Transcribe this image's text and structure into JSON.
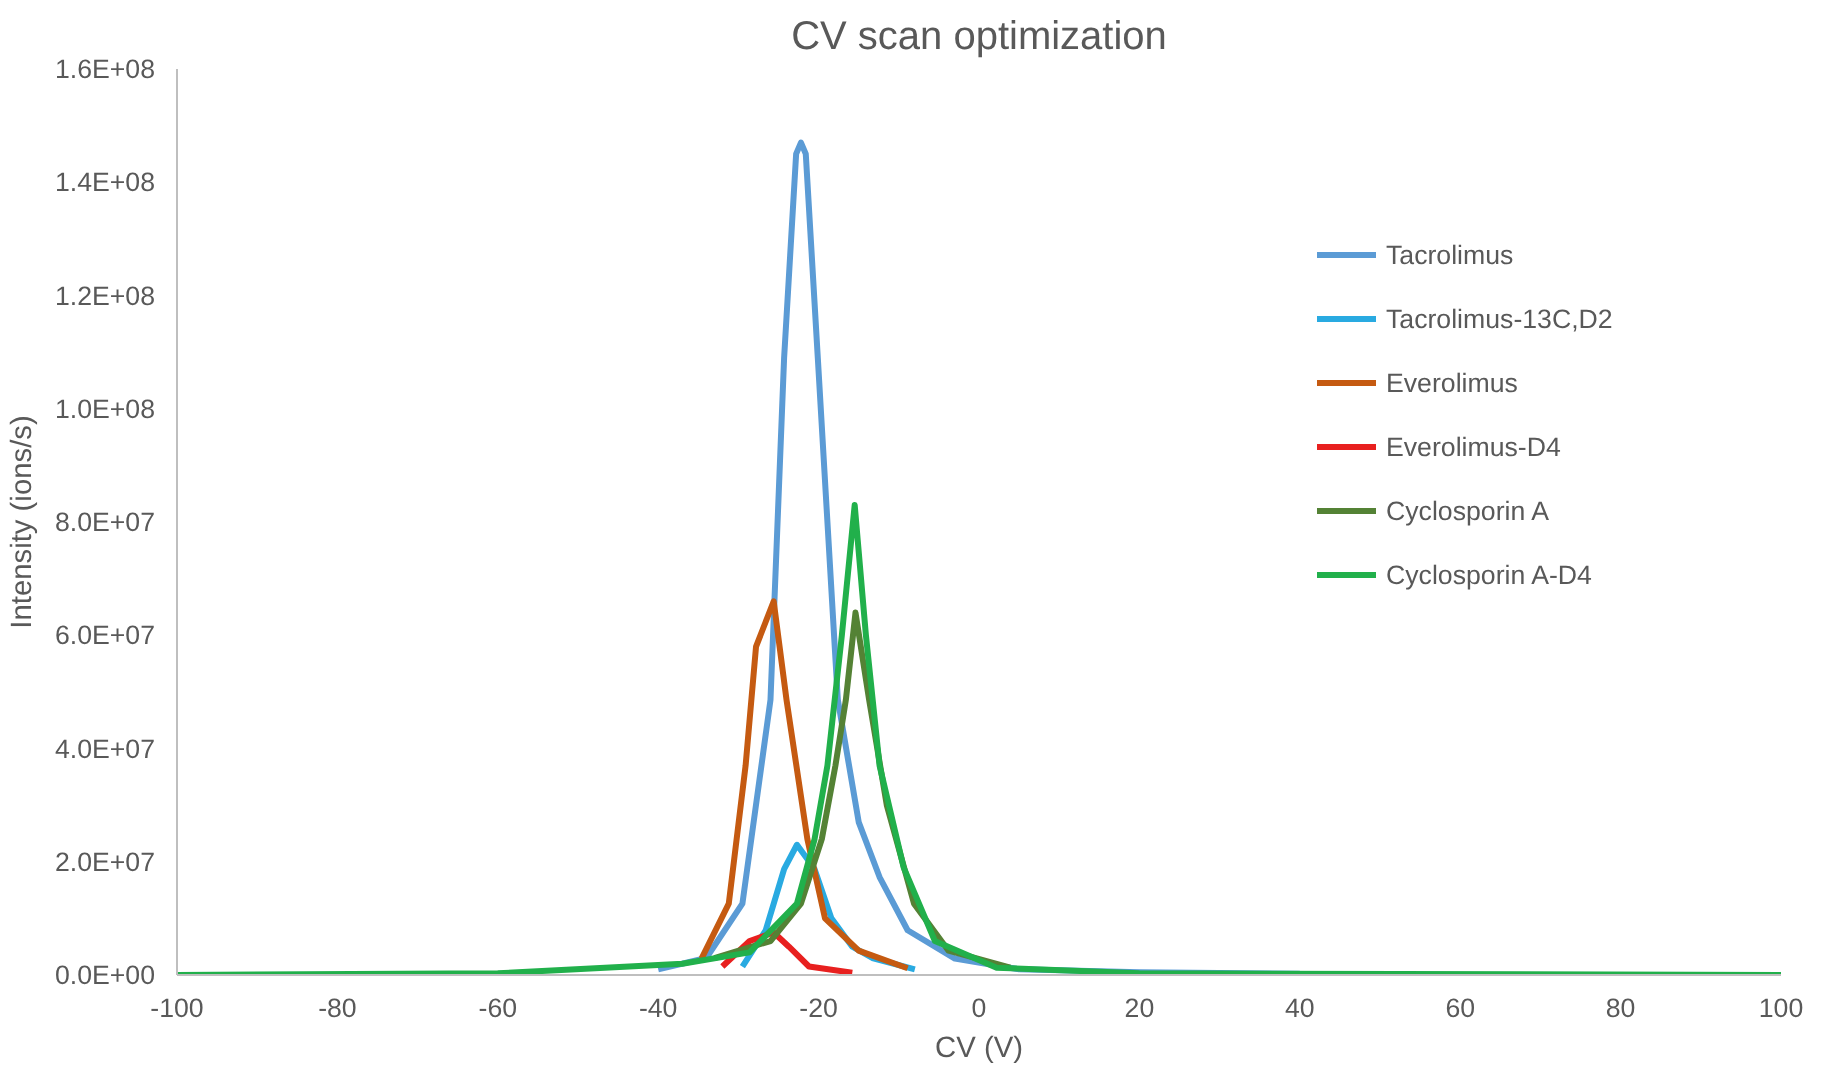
{
  "chart_data": {
    "type": "line",
    "title": "CV scan optimization",
    "xlabel": "CV (V)",
    "ylabel": "Intensity (ions/s)",
    "xlim": [
      -100,
      100
    ],
    "xticks": [
      -100,
      -80,
      -60,
      -40,
      -20,
      0,
      20,
      40,
      60,
      80,
      100
    ],
    "ylim": [
      0,
      160000000
    ],
    "yticks": [
      {
        "value": 0,
        "label": "0.0E+00"
      },
      {
        "value": 20000000,
        "label": "2.0E+07"
      },
      {
        "value": 40000000,
        "label": "4.0E+07"
      },
      {
        "value": 60000000,
        "label": "6.0E+07"
      },
      {
        "value": 80000000,
        "label": "8.0E+07"
      },
      {
        "value": 100000000,
        "label": "1.0E+08"
      },
      {
        "value": 120000000,
        "label": "1.2E+08"
      },
      {
        "value": 140000000,
        "label": "1.4E+08"
      },
      {
        "value": 160000000,
        "label": "1.6E+08"
      }
    ],
    "grid": false,
    "legend": "top right",
    "marker": "none",
    "line_style": "solid",
    "series": [
      {
        "name": "Tacrolimus",
        "color": "#5b9bd5",
        "x": [
          -40,
          -34,
          -29.5,
          -26,
          -24.3,
          -22.8,
          -22.2,
          -21.6,
          -20.1,
          -17.6,
          -15,
          -12.4,
          -8.9,
          -3,
          5,
          20,
          40
        ],
        "values": [
          1000000,
          3000000,
          12600000,
          48600000,
          109000000,
          145000000,
          147000000,
          145000000,
          109000000,
          48600000,
          27000000,
          17300000,
          7900000,
          2900000,
          1000000,
          500000,
          200000
        ]
      },
      {
        "name": "Tacrolimus-13C,D2",
        "color": "#29aae1",
        "x": [
          -29.5,
          -26.6,
          -24.3,
          -22.7,
          -20.5,
          -18.4,
          -15.8,
          -13.3,
          -8
        ],
        "values": [
          1500000,
          7900000,
          18700000,
          23000000,
          18700000,
          10000000,
          5000000,
          3000000,
          1000000
        ]
      },
      {
        "name": "Everolimus",
        "color": "#c55a11",
        "x": [
          -34.6,
          -31.2,
          -29.1,
          -27.8,
          -25.6,
          -24,
          -21.4,
          -19.2,
          -15,
          -8.9
        ],
        "values": [
          2900000,
          12600000,
          37000000,
          58000000,
          66000000,
          48600000,
          24000000,
          10000000,
          4300000,
          1200000
        ]
      },
      {
        "name": "Everolimus-D4",
        "color": "#e8201f",
        "x": [
          -32,
          -28.6,
          -25.6,
          -23.7,
          -21.2,
          -15.8
        ],
        "values": [
          1500000,
          6000000,
          7500000,
          5000000,
          1500000,
          400000
        ]
      },
      {
        "name": "Cyclosporin A",
        "color": "#548235",
        "x": [
          -33,
          -26,
          -22.2,
          -19.6,
          -17.9,
          -16.6,
          -15.4,
          -13.7,
          -11.5,
          -8.1,
          -3.8,
          3.9
        ],
        "values": [
          3000000,
          6000000,
          12600000,
          24000000,
          37000000,
          48600000,
          64000000,
          48600000,
          30000000,
          12600000,
          4300000,
          1300000
        ]
      },
      {
        "name": "Cyclosporin A-D4",
        "color": "#21b04b",
        "x": [
          -100,
          -60,
          -37,
          -28.6,
          -22.7,
          -20.5,
          -18.9,
          -17.1,
          -15.5,
          -14.1,
          -12.4,
          -9.4,
          -5.5,
          2.2,
          20,
          100
        ],
        "values": [
          0,
          300000,
          2000000,
          4000000,
          12600000,
          24000000,
          37000000,
          60000000,
          83000000,
          60000000,
          37000000,
          19000000,
          6000000,
          1300000,
          300000,
          0
        ]
      }
    ]
  }
}
